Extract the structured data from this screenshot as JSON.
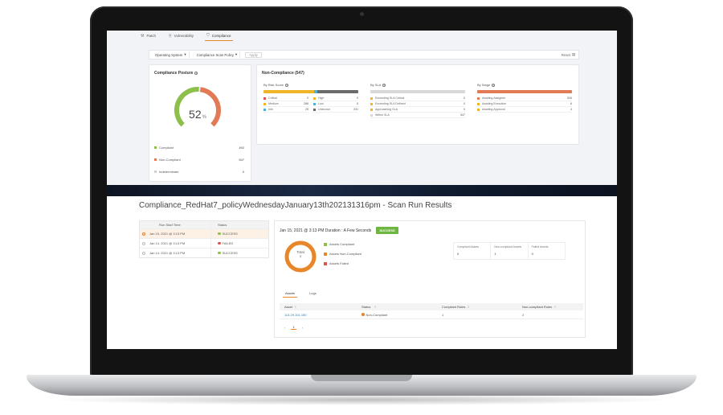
{
  "top_tabs": [
    {
      "label": "Patch",
      "icon": "wrench-icon"
    },
    {
      "label": "Vulnerability",
      "icon": "pin-icon"
    },
    {
      "label": "Compliance",
      "icon": "shield-icon",
      "active": true
    }
  ],
  "filters": {
    "os_label": "Operating System",
    "policy_label": "Compliance Scan Policy",
    "apply_label": "Apply",
    "reset_label": "Reset"
  },
  "compliance_posture": {
    "title": "Compliance Posture",
    "value": "52",
    "unit": "%",
    "fraction": 0.52,
    "legend": [
      {
        "label": "Compliant",
        "value": "492",
        "color": "#8dbf4a"
      },
      {
        "label": "Non-Compliant",
        "value": "547",
        "color": "#e27a55"
      },
      {
        "label": "Indeterminate",
        "value": "0",
        "color": "#cfcfcf"
      }
    ]
  },
  "non_compliance": {
    "title": "Non-Compliance (547)",
    "by_risk": {
      "title": "By Risk Score",
      "bar": [
        {
          "color": "#f0b429",
          "fraction": 0.53
        },
        {
          "color": "#4eb3d3",
          "fraction": 0.04
        },
        {
          "color": "#6b6b6b",
          "fraction": 0.43
        }
      ],
      "rows": [
        [
          {
            "label": "Critical",
            "value": "0",
            "color": "#d9534f"
          },
          {
            "label": "High",
            "value": "0",
            "color": "#f0b429"
          }
        ],
        [
          {
            "label": "Medium",
            "value": "286",
            "color": "#f0b429"
          },
          {
            "label": "Low",
            "value": "5",
            "color": "#4eb3d3"
          }
        ],
        [
          {
            "label": "Info",
            "value": "25",
            "color": "#4eb3d3"
          },
          {
            "label": "Unknown",
            "value": "231",
            "color": "#6b6b6b"
          }
        ]
      ]
    },
    "by_sla": {
      "title": "By SLA",
      "bar": [
        {
          "color": "#d8d8d8",
          "fraction": 1.0
        }
      ],
      "rows": [
        {
          "label": "Exceeding SLA Critical",
          "value": "0",
          "color": "#f0b429"
        },
        {
          "label": "Exceeding SLA Defined",
          "value": "0",
          "color": "#f0b429"
        },
        {
          "label": "Approaching SLA",
          "value": "0",
          "color": "#f0b429"
        },
        {
          "label": "Within SLA",
          "value": "547",
          "color": "#d8d8d8"
        }
      ]
    },
    "by_stage": {
      "title": "By Stage",
      "bar": [
        {
          "color": "#e27a55",
          "fraction": 1.0
        }
      ],
      "rows": [
        {
          "label": "Awaiting Assignee",
          "value": "526",
          "color": "#e27a55"
        },
        {
          "label": "Awaiting Execution",
          "value": "6",
          "color": "#f0b429"
        },
        {
          "label": "Awaiting Approval",
          "value": "4",
          "color": "#f0b429"
        }
      ]
    }
  },
  "page_title": "Compliance_RedHat7_policyWednesdayJanuary13th202131316pm - Scan Run Results",
  "runs": {
    "headers": {
      "time": "Run Start Time",
      "status": "Status"
    },
    "rows": [
      {
        "time": "Jan 15, 2021 @ 3:13 PM",
        "status": "SUCCESS",
        "status_color": "#8dbf4a",
        "selected": true
      },
      {
        "time": "Jan 14, 2021 @ 3:13 PM",
        "status": "FAILED",
        "status_color": "#d9534f",
        "selected": false
      },
      {
        "time": "Jan 14, 2021 @ 3:13 PM",
        "status": "SUCCESS",
        "status_color": "#8dbf4a",
        "selected": false
      }
    ]
  },
  "run_detail": {
    "header": "Jan 15, 2021 @ 3:13 PM Duration : A Few Seconds",
    "badge": "SUCCESS",
    "donut": {
      "label": "Total",
      "value": "1",
      "color": "#e8862a"
    },
    "legend": [
      {
        "label": "Assets Compliant",
        "color": "#8dbf4a"
      },
      {
        "label": "Assets Non-Compliant",
        "color": "#e8862a"
      },
      {
        "label": "Assets Failed",
        "color": "#d9534f"
      }
    ],
    "stats": [
      {
        "label": "Compliant Assets",
        "value": "0"
      },
      {
        "label": "Non-compliant Assets",
        "value": "1"
      },
      {
        "label": "Failed Assets",
        "value": "0"
      }
    ],
    "tabs": [
      {
        "label": "Assets",
        "active": true
      },
      {
        "label": "Logs",
        "active": false
      }
    ],
    "table": {
      "headers": [
        "Asset",
        "Status",
        "Compliant Rules",
        "Non-compliant Rules"
      ],
      "rows": [
        {
          "asset": "113.29.101.150",
          "status": "Non-Compliant",
          "status_color": "#e8862a",
          "compliant": "1",
          "noncompliant": "2"
        }
      ]
    },
    "pager": {
      "prev": "‹",
      "page": "1",
      "next": "›"
    }
  }
}
